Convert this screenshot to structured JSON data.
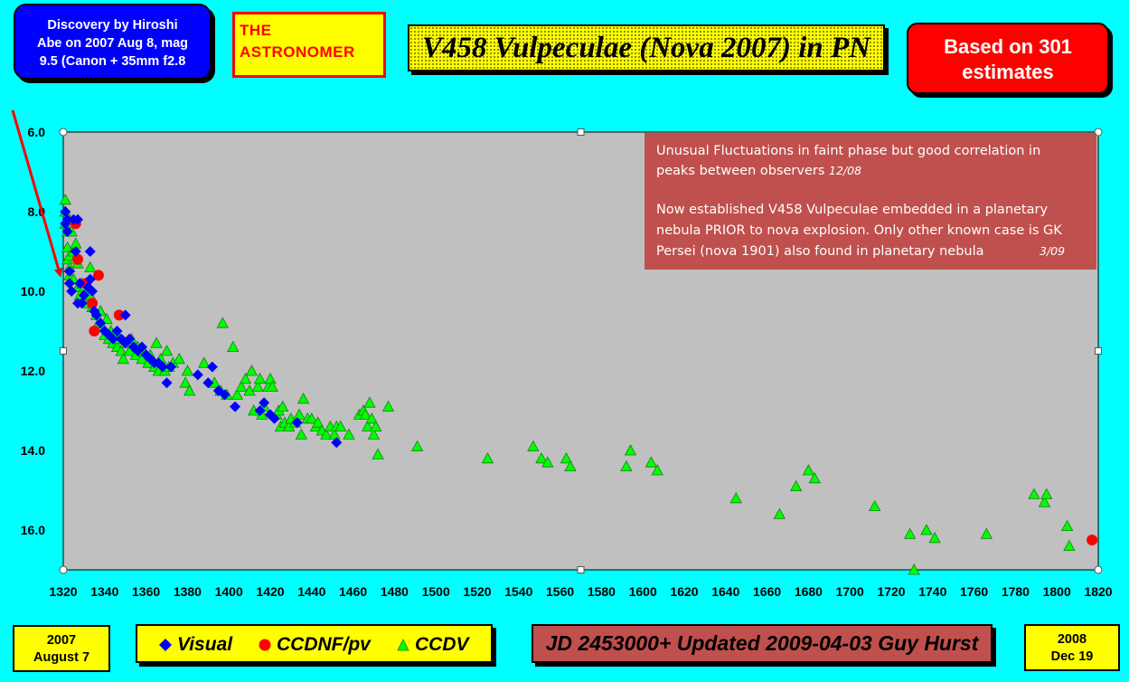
{
  "header": {
    "discovery_text": "Discovery by Hiroshi Abe on 2007 Aug 8, mag 9.5 (Canon + 35mm f2.8",
    "discovery_lines": [
      "Discovery by Hiroshi",
      "Abe on 2007 Aug 8, mag",
      "9.5 (Canon + 35mm f2.8"
    ],
    "publication_lines": [
      "THE",
      "ASTRONOMER"
    ],
    "title": "V458 Vulpeculae (Nova 2007) in PN",
    "based_lines": [
      "Based on 301",
      "estimates"
    ]
  },
  "footer": {
    "start_date_lines": [
      "2007",
      "August 7"
    ],
    "end_date_lines": [
      "2008",
      "Dec 19"
    ],
    "updated": "JD 2453000+ Updated 2009-04-03 Guy Hurst",
    "legend": [
      {
        "label": "Visual",
        "marker": "diamond",
        "color": "#0000ff"
      },
      {
        "label": "CCDNF/pv",
        "marker": "circle",
        "color": "#ff0000"
      },
      {
        "label": "CCDV",
        "marker": "triangle",
        "color": "#00ff00"
      }
    ]
  },
  "colors": {
    "background": "#00ffff",
    "plot_area": "#c0c0c0",
    "annotation_box": "#c0504d",
    "arrow": "#ff0000"
  },
  "chart_data": {
    "type": "scatter",
    "title": "V458 Vulpeculae (Nova 2007) in PN",
    "xlabel": "",
    "ylabel": "",
    "xlim": [
      1320,
      1820
    ],
    "ylim": [
      17.0,
      6.0
    ],
    "y_inverted": true,
    "x_ticks": [
      1320,
      1340,
      1360,
      1380,
      1400,
      1420,
      1440,
      1460,
      1480,
      1500,
      1520,
      1540,
      1560,
      1580,
      1600,
      1620,
      1640,
      1660,
      1680,
      1700,
      1720,
      1740,
      1760,
      1780,
      1800,
      1820
    ],
    "y_ticks": [
      6.0,
      8.0,
      10.0,
      12.0,
      14.0,
      16.0
    ],
    "y_tick_labels": [
      "6.0",
      "8.0",
      "10.0",
      "12.0",
      "14.0",
      "16.0"
    ],
    "grid": false,
    "annotation": {
      "paragraph1": "Unusual Fluctuations in faint phase but good correlation in peaks between observers",
      "date1": "12/08",
      "paragraph2": "Now established  V458 Vulpeculae embedded in a planetary nebula PRIOR to nova explosion.  Only other known case is GK Persei (nova 1901) also found in planetary nebula",
      "date2": "3/09",
      "position": "top-right"
    },
    "arrow_target": {
      "x": 1320,
      "y": 9.6
    },
    "series": [
      {
        "name": "Visual",
        "marker": "diamond",
        "color": "#0000ff",
        "points": [
          [
            1321,
            8.0
          ],
          [
            1321,
            8.3
          ],
          [
            1322,
            8.2
          ],
          [
            1322,
            8.5
          ],
          [
            1323,
            9.5
          ],
          [
            1323,
            9.8
          ],
          [
            1324,
            10.0
          ],
          [
            1325,
            8.2
          ],
          [
            1326,
            9.0
          ],
          [
            1327,
            8.2
          ],
          [
            1327,
            10.3
          ],
          [
            1328,
            9.8
          ],
          [
            1329,
            10.3
          ],
          [
            1330,
            10.1
          ],
          [
            1332,
            9.9
          ],
          [
            1333,
            9.0
          ],
          [
            1333,
            9.7
          ],
          [
            1334,
            10.0
          ],
          [
            1335,
            10.5
          ],
          [
            1336,
            10.6
          ],
          [
            1338,
            10.8
          ],
          [
            1340,
            11.0
          ],
          [
            1342,
            11.1
          ],
          [
            1344,
            11.2
          ],
          [
            1346,
            11.0
          ],
          [
            1348,
            11.2
          ],
          [
            1350,
            11.3
          ],
          [
            1350,
            10.6
          ],
          [
            1352,
            11.2
          ],
          [
            1354,
            11.4
          ],
          [
            1356,
            11.5
          ],
          [
            1358,
            11.4
          ],
          [
            1360,
            11.6
          ],
          [
            1362,
            11.7
          ],
          [
            1364,
            11.8
          ],
          [
            1366,
            11.8
          ],
          [
            1368,
            11.9
          ],
          [
            1370,
            12.3
          ],
          [
            1372,
            11.9
          ],
          [
            1385,
            12.1
          ],
          [
            1390,
            12.3
          ],
          [
            1392,
            11.9
          ],
          [
            1395,
            12.5
          ],
          [
            1398,
            12.6
          ],
          [
            1403,
            12.9
          ],
          [
            1415,
            13.0
          ],
          [
            1417,
            12.8
          ],
          [
            1420,
            13.1
          ],
          [
            1422,
            13.2
          ],
          [
            1433,
            13.3
          ],
          [
            1452,
            13.8
          ]
        ]
      },
      {
        "name": "CCDNF/pv",
        "marker": "circle",
        "color": "#ff0000",
        "points": [
          [
            1326,
            8.3
          ],
          [
            1327,
            9.2
          ],
          [
            1331,
            9.8
          ],
          [
            1334,
            10.3
          ],
          [
            1335,
            11.0
          ],
          [
            1337,
            9.6
          ],
          [
            1347,
            10.6
          ],
          [
            1817,
            16.25
          ]
        ]
      },
      {
        "name": "CCDV",
        "marker": "triangle",
        "color": "#00ff00",
        "points": [
          [
            1321,
            7.7
          ],
          [
            1321,
            8.0
          ],
          [
            1321,
            8.3
          ],
          [
            1322,
            8.5
          ],
          [
            1322,
            8.9
          ],
          [
            1322,
            9.2
          ],
          [
            1323,
            9.1
          ],
          [
            1323,
            9.4
          ],
          [
            1323,
            9.6
          ],
          [
            1324,
            8.5
          ],
          [
            1325,
            9.0
          ],
          [
            1325,
            9.7
          ],
          [
            1326,
            8.8
          ],
          [
            1327,
            9.3
          ],
          [
            1327,
            9.9
          ],
          [
            1328,
            10.1
          ],
          [
            1329,
            9.8
          ],
          [
            1330,
            10.2
          ],
          [
            1331,
            10.0
          ],
          [
            1332,
            10.3
          ],
          [
            1333,
            10.1
          ],
          [
            1333,
            9.4
          ],
          [
            1334,
            10.4
          ],
          [
            1336,
            10.6
          ],
          [
            1337,
            10.8
          ],
          [
            1338,
            10.5
          ],
          [
            1339,
            10.9
          ],
          [
            1340,
            11.1
          ],
          [
            1341,
            10.7
          ],
          [
            1342,
            11.2
          ],
          [
            1343,
            11.0
          ],
          [
            1344,
            11.3
          ],
          [
            1345,
            11.1
          ],
          [
            1346,
            11.4
          ],
          [
            1347,
            11.2
          ],
          [
            1348,
            11.5
          ],
          [
            1349,
            11.7
          ],
          [
            1350,
            11.3
          ],
          [
            1352,
            11.5
          ],
          [
            1353,
            11.2
          ],
          [
            1355,
            11.6
          ],
          [
            1356,
            11.4
          ],
          [
            1358,
            11.7
          ],
          [
            1359,
            11.5
          ],
          [
            1361,
            11.8
          ],
          [
            1362,
            11.6
          ],
          [
            1364,
            11.9
          ],
          [
            1365,
            11.3
          ],
          [
            1366,
            12.0
          ],
          [
            1367,
            11.7
          ],
          [
            1369,
            12.0
          ],
          [
            1370,
            11.5
          ],
          [
            1371,
            11.9
          ],
          [
            1373,
            11.8
          ],
          [
            1376,
            11.7
          ],
          [
            1379,
            12.3
          ],
          [
            1380,
            12.0
          ],
          [
            1381,
            12.5
          ],
          [
            1388,
            11.8
          ],
          [
            1393,
            12.3
          ],
          [
            1396,
            12.5
          ],
          [
            1397,
            10.8
          ],
          [
            1399,
            12.6
          ],
          [
            1402,
            11.4
          ],
          [
            1404,
            12.6
          ],
          [
            1406,
            12.4
          ],
          [
            1408,
            12.2
          ],
          [
            1410,
            12.5
          ],
          [
            1411,
            12.0
          ],
          [
            1412,
            13.0
          ],
          [
            1414,
            12.4
          ],
          [
            1415,
            12.2
          ],
          [
            1416,
            13.1
          ],
          [
            1417,
            12.9
          ],
          [
            1419,
            12.4
          ],
          [
            1420,
            12.2
          ],
          [
            1421,
            12.4
          ],
          [
            1423,
            13.1
          ],
          [
            1424,
            13.0
          ],
          [
            1425,
            13.4
          ],
          [
            1426,
            12.9
          ],
          [
            1427,
            13.3
          ],
          [
            1429,
            13.4
          ],
          [
            1430,
            13.2
          ],
          [
            1432,
            13.3
          ],
          [
            1434,
            13.1
          ],
          [
            1435,
            13.6
          ],
          [
            1436,
            12.7
          ],
          [
            1438,
            13.2
          ],
          [
            1440,
            13.2
          ],
          [
            1442,
            13.4
          ],
          [
            1443,
            13.3
          ],
          [
            1445,
            13.5
          ],
          [
            1447,
            13.6
          ],
          [
            1449,
            13.4
          ],
          [
            1451,
            13.6
          ],
          [
            1452,
            13.4
          ],
          [
            1454,
            13.4
          ],
          [
            1458,
            13.6
          ],
          [
            1463,
            13.1
          ],
          [
            1465,
            13.0
          ],
          [
            1466,
            13.1
          ],
          [
            1467,
            13.4
          ],
          [
            1468,
            12.8
          ],
          [
            1469,
            13.2
          ],
          [
            1470,
            13.6
          ],
          [
            1471,
            13.4
          ],
          [
            1472,
            14.1
          ],
          [
            1477,
            12.9
          ],
          [
            1491,
            13.9
          ],
          [
            1525,
            14.2
          ],
          [
            1547,
            13.9
          ],
          [
            1551,
            14.2
          ],
          [
            1554,
            14.3
          ],
          [
            1563,
            14.2
          ],
          [
            1565,
            14.4
          ],
          [
            1592,
            14.4
          ],
          [
            1594,
            14.0
          ],
          [
            1604,
            14.3
          ],
          [
            1607,
            14.5
          ],
          [
            1645,
            15.2
          ],
          [
            1666,
            15.6
          ],
          [
            1674,
            14.9
          ],
          [
            1680,
            14.5
          ],
          [
            1683,
            14.7
          ],
          [
            1712,
            15.4
          ],
          [
            1729,
            16.1
          ],
          [
            1731,
            17.0
          ],
          [
            1737,
            16.0
          ],
          [
            1741,
            16.2
          ],
          [
            1766,
            16.1
          ],
          [
            1789,
            15.1
          ],
          [
            1794,
            15.3
          ],
          [
            1795,
            15.1
          ],
          [
            1805,
            15.9
          ],
          [
            1806,
            16.4
          ]
        ]
      }
    ]
  }
}
